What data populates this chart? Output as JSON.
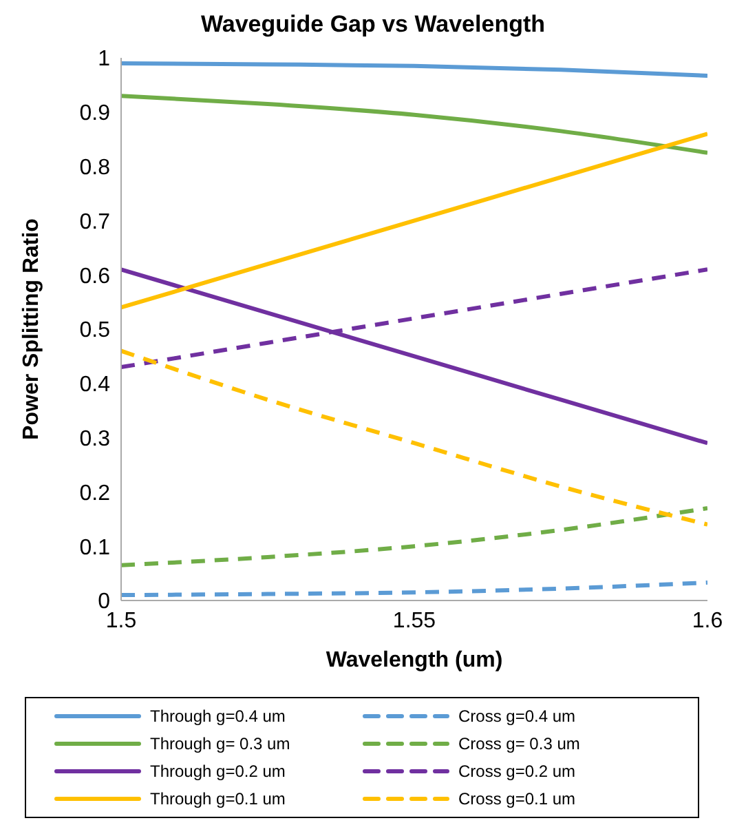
{
  "chart_data": {
    "type": "line",
    "title": "Waveguide Gap vs Wavelength",
    "xlabel": "Wavelength (um)",
    "ylabel": "Power Splitting Ratio",
    "x": [
      1.5,
      1.525,
      1.55,
      1.575,
      1.6
    ],
    "xlim": [
      1.5,
      1.6
    ],
    "xticks": [
      1.5,
      1.55,
      1.6
    ],
    "ylim": [
      0,
      1
    ],
    "yticks": [
      0,
      0.1,
      0.2,
      0.3,
      0.4,
      0.5,
      0.6,
      0.7,
      0.8,
      0.9,
      1
    ],
    "grid": false,
    "legend": "bottom",
    "marker": "none",
    "series": [
      {
        "name": "Through g=0.4 um",
        "color": "#5b9bd5",
        "line_style": "solid",
        "values": [
          0.99,
          0.988,
          0.985,
          0.978,
          0.967
        ]
      },
      {
        "name": "Cross g=0.4 um",
        "color": "#5b9bd5",
        "line_style": "dashed",
        "values": [
          0.01,
          0.012,
          0.015,
          0.022,
          0.033
        ]
      },
      {
        "name": "Through g= 0.3 um",
        "color": "#70ad47",
        "line_style": "solid",
        "values": [
          0.93,
          0.915,
          0.895,
          0.865,
          0.825
        ]
      },
      {
        "name": "Cross g= 0.3 um",
        "color": "#70ad47",
        "line_style": "dashed",
        "values": [
          0.065,
          0.08,
          0.1,
          0.13,
          0.17
        ]
      },
      {
        "name": "Through g=0.2 um",
        "color": "#7030a0",
        "line_style": "solid",
        "values": [
          0.61,
          0.53,
          0.45,
          0.37,
          0.29
        ]
      },
      {
        "name": "Cross g=0.2 um",
        "color": "#7030a0",
        "line_style": "dashed",
        "values": [
          0.43,
          0.475,
          0.52,
          0.565,
          0.61
        ]
      },
      {
        "name": "Through g=0.1 um",
        "color": "#ffc000",
        "line_style": "solid",
        "values": [
          0.54,
          0.62,
          0.7,
          0.78,
          0.86
        ]
      },
      {
        "name": "Cross g=0.1 um",
        "color": "#ffc000",
        "line_style": "dashed",
        "values": [
          0.46,
          0.37,
          0.29,
          0.21,
          0.14
        ]
      }
    ]
  }
}
